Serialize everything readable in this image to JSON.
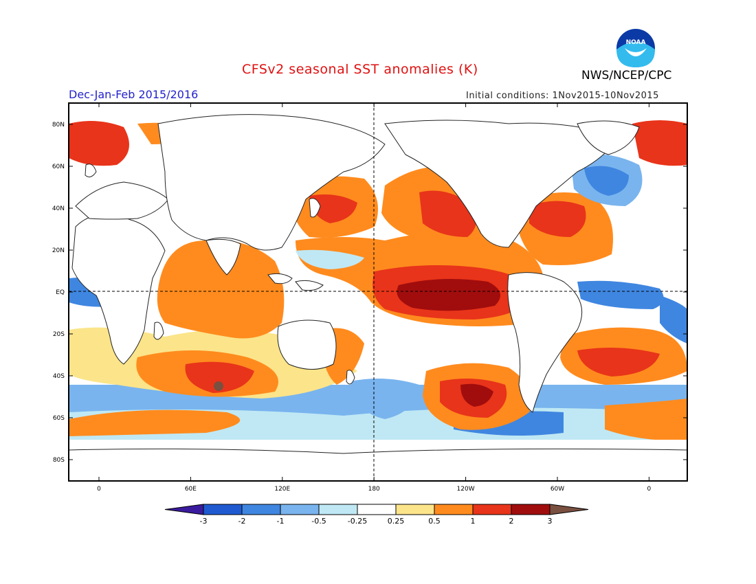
{
  "title": "CFSv2 seasonal SST anomalies (K)",
  "organization": "NWS/NCEP/CPC",
  "logo_text": "NOAA",
  "period": "Dec-Jan-Feb 2015/2016",
  "initial_conditions": "Initial conditions: 1Nov2015-10Nov2015",
  "lat_ticks": [
    "80N",
    "60N",
    "40N",
    "20N",
    "EQ",
    "20S",
    "40S",
    "60S",
    "80S"
  ],
  "lon_ticks": [
    "0",
    "60E",
    "120E",
    "180",
    "120W",
    "60W",
    "0"
  ],
  "colorbar": {
    "labels": [
      "-3",
      "-2",
      "-1",
      "-0.5",
      "-0.25",
      "0.25",
      "0.5",
      "1",
      "2",
      "3"
    ],
    "colors": [
      "#3a1b9e",
      "#1f5ad0",
      "#3f86e0",
      "#79b4ee",
      "#bfe8f4",
      "#ffffff",
      "#fbe48a",
      "#ff8b1e",
      "#e8341a",
      "#a10d0d",
      "#7a5040"
    ]
  },
  "colors": {
    "title": "#e01010",
    "period": "#2222cc",
    "land": "#ffffff"
  }
}
